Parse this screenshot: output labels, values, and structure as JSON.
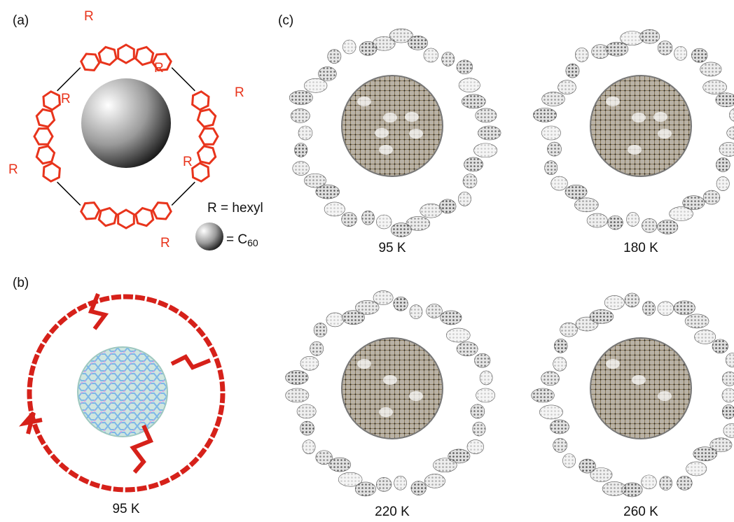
{
  "panels": [
    {
      "label": "(a)",
      "substituent_labels": [
        "R",
        "R",
        "R",
        "R",
        "R",
        "R",
        "R"
      ],
      "legend": {
        "r_definition": "R = hexyl",
        "sphere_prefix": "= C",
        "sphere_subscript": "60"
      }
    },
    {
      "label": "(b)",
      "caption": "95 K"
    },
    {
      "label": "(c)",
      "captions": [
        "95 K",
        "180 K",
        "220 K",
        "260 K"
      ]
    }
  ]
}
